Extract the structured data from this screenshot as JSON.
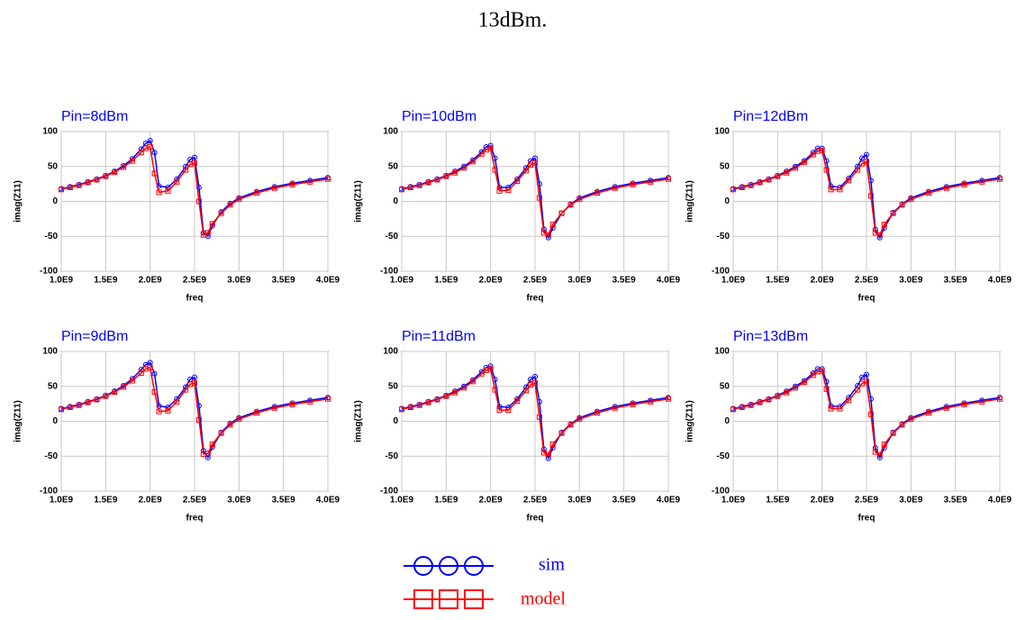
{
  "caption": "13dBm.",
  "legend": [
    "sim",
    "model"
  ],
  "chart_data": [
    {
      "type": "line",
      "title": "Pin=8dBm",
      "xlabel": "freq",
      "ylabel": "imag(Z11)",
      "x": [
        1000000000.0,
        1100000000.0,
        1200000000.0,
        1300000000.0,
        1400000000.0,
        1500000000.0,
        1600000000.0,
        1700000000.0,
        1800000000.0,
        1900000000.0,
        1950000000.0,
        2000000000.0,
        2050000000.0,
        2100000000.0,
        2200000000.0,
        2300000000.0,
        2400000000.0,
        2450000000.0,
        2500000000.0,
        2550000000.0,
        2600000000.0,
        2650000000.0,
        2700000000.0,
        2800000000.0,
        2900000000.0,
        3000000000.0,
        3200000000.0,
        3400000000.0,
        3600000000.0,
        3800000000.0,
        4000000000.0
      ],
      "series": [
        {
          "color": "#0000ff",
          "values": [
            18,
            21,
            24,
            28,
            32,
            37,
            43,
            51,
            61,
            75,
            83,
            87,
            70,
            22,
            20,
            32,
            50,
            60,
            63,
            20,
            -45,
            -50,
            -35,
            -15,
            -3,
            5,
            14,
            21,
            26,
            30,
            34
          ]
        },
        {
          "color": "#ff0000",
          "values": [
            17,
            20,
            23,
            27,
            31,
            36,
            42,
            49,
            58,
            70,
            76,
            78,
            40,
            13,
            15,
            28,
            45,
            53,
            55,
            0,
            -48,
            -45,
            -32,
            -17,
            -5,
            3,
            12,
            19,
            24,
            28,
            32
          ]
        }
      ],
      "xlim": [
        1000000000.0,
        4000000000.0
      ],
      "ylim": [
        -100,
        100
      ],
      "xticks": [
        {
          "value": 1000000000.0,
          "label": "1.0E9"
        },
        {
          "value": 1500000000.0,
          "label": "1.5E9"
        },
        {
          "value": 2000000000.0,
          "label": "2.0E9"
        },
        {
          "value": 2500000000.0,
          "label": "2.5E9"
        },
        {
          "value": 3000000000.0,
          "label": "3.0E9"
        },
        {
          "value": 3500000000.0,
          "label": "3.5E9"
        },
        {
          "value": 4000000000.0,
          "label": "4.0E9"
        }
      ],
      "yticks": [
        -100,
        -50,
        0,
        50,
        100
      ],
      "grid": true
    },
    {
      "type": "line",
      "title": "Pin=10dBm",
      "xlabel": "freq",
      "ylabel": "imag(Z11)",
      "x": [
        1000000000.0,
        1100000000.0,
        1200000000.0,
        1300000000.0,
        1400000000.0,
        1500000000.0,
        1600000000.0,
        1700000000.0,
        1800000000.0,
        1900000000.0,
        1950000000.0,
        2000000000.0,
        2050000000.0,
        2100000000.0,
        2200000000.0,
        2300000000.0,
        2400000000.0,
        2450000000.0,
        2500000000.0,
        2550000000.0,
        2600000000.0,
        2650000000.0,
        2700000000.0,
        2800000000.0,
        2900000000.0,
        3000000000.0,
        3200000000.0,
        3400000000.0,
        3600000000.0,
        3800000000.0,
        4000000000.0
      ],
      "series": [
        {
          "color": "#0000ff",
          "values": [
            18,
            21,
            24,
            28,
            32,
            37,
            43,
            50,
            59,
            71,
            78,
            80,
            62,
            20,
            20,
            32,
            48,
            58,
            62,
            25,
            -40,
            -52,
            -38,
            -17,
            -4,
            5,
            14,
            21,
            26,
            30,
            34
          ]
        },
        {
          "color": "#ff0000",
          "values": [
            17,
            20,
            23,
            27,
            31,
            36,
            41,
            48,
            57,
            68,
            74,
            76,
            45,
            15,
            16,
            29,
            44,
            52,
            55,
            5,
            -45,
            -48,
            -33,
            -17,
            -5,
            3,
            12,
            19,
            24,
            28,
            32
          ]
        }
      ],
      "xlim": [
        1000000000.0,
        4000000000.0
      ],
      "ylim": [
        -100,
        100
      ],
      "xticks": [
        {
          "value": 1000000000.0,
          "label": "1.0E9"
        },
        {
          "value": 1500000000.0,
          "label": "1.5E9"
        },
        {
          "value": 2000000000.0,
          "label": "2.0E9"
        },
        {
          "value": 2500000000.0,
          "label": "2.5E9"
        },
        {
          "value": 3000000000.0,
          "label": "3.0E9"
        },
        {
          "value": 3500000000.0,
          "label": "3.5E9"
        },
        {
          "value": 4000000000.0,
          "label": "4.0E9"
        }
      ],
      "yticks": [
        -100,
        -50,
        0,
        50,
        100
      ],
      "grid": true
    },
    {
      "type": "line",
      "title": "Pin=12dBm",
      "xlabel": "freq",
      "ylabel": "imag(Z11)",
      "x": [
        1000000000.0,
        1100000000.0,
        1200000000.0,
        1300000000.0,
        1400000000.0,
        1500000000.0,
        1600000000.0,
        1700000000.0,
        1800000000.0,
        1900000000.0,
        1950000000.0,
        2000000000.0,
        2050000000.0,
        2100000000.0,
        2200000000.0,
        2300000000.0,
        2400000000.0,
        2450000000.0,
        2500000000.0,
        2550000000.0,
        2600000000.0,
        2650000000.0,
        2700000000.0,
        2800000000.0,
        2900000000.0,
        3000000000.0,
        3200000000.0,
        3400000000.0,
        3600000000.0,
        3800000000.0,
        4000000000.0
      ],
      "series": [
        {
          "color": "#0000ff",
          "values": [
            18,
            21,
            24,
            28,
            32,
            37,
            43,
            50,
            58,
            70,
            76,
            76,
            58,
            22,
            20,
            33,
            50,
            62,
            67,
            30,
            -40,
            -52,
            -38,
            -16,
            -4,
            5,
            14,
            21,
            26,
            30,
            34
          ]
        },
        {
          "color": "#ff0000",
          "values": [
            17,
            20,
            23,
            27,
            31,
            36,
            41,
            48,
            56,
            67,
            72,
            73,
            45,
            17,
            17,
            30,
            45,
            54,
            57,
            8,
            -45,
            -48,
            -33,
            -17,
            -5,
            3,
            12,
            19,
            24,
            28,
            32
          ]
        }
      ],
      "xlim": [
        1000000000.0,
        4000000000.0
      ],
      "ylim": [
        -100,
        100
      ],
      "xticks": [
        {
          "value": 1000000000.0,
          "label": "1.0E9"
        },
        {
          "value": 1500000000.0,
          "label": "1.5E9"
        },
        {
          "value": 2000000000.0,
          "label": "2.0E9"
        },
        {
          "value": 2500000000.0,
          "label": "2.5E9"
        },
        {
          "value": 3000000000.0,
          "label": "3.0E9"
        },
        {
          "value": 3500000000.0,
          "label": "3.5E9"
        },
        {
          "value": 4000000000.0,
          "label": "4.0E9"
        }
      ],
      "yticks": [
        -100,
        -50,
        0,
        50,
        100
      ],
      "grid": true
    },
    {
      "type": "line",
      "title": "Pin=9dBm",
      "xlabel": "freq",
      "ylabel": "imag(Z11)",
      "x": [
        1000000000.0,
        1100000000.0,
        1200000000.0,
        1300000000.0,
        1400000000.0,
        1500000000.0,
        1600000000.0,
        1700000000.0,
        1800000000.0,
        1900000000.0,
        1950000000.0,
        2000000000.0,
        2050000000.0,
        2100000000.0,
        2200000000.0,
        2300000000.0,
        2400000000.0,
        2450000000.0,
        2500000000.0,
        2550000000.0,
        2600000000.0,
        2650000000.0,
        2700000000.0,
        2800000000.0,
        2900000000.0,
        3000000000.0,
        3200000000.0,
        3400000000.0,
        3600000000.0,
        3800000000.0,
        4000000000.0
      ],
      "series": [
        {
          "color": "#0000ff",
          "values": [
            18,
            21,
            24,
            28,
            32,
            37,
            43,
            51,
            61,
            74,
            81,
            84,
            68,
            22,
            20,
            32,
            49,
            60,
            63,
            22,
            -42,
            -52,
            -37,
            -16,
            -3,
            5,
            14,
            21,
            26,
            30,
            34
          ]
        },
        {
          "color": "#ff0000",
          "values": [
            17,
            20,
            23,
            27,
            31,
            36,
            42,
            49,
            58,
            69,
            75,
            77,
            42,
            14,
            15,
            28,
            45,
            53,
            55,
            2,
            -47,
            -46,
            -33,
            -17,
            -5,
            3,
            12,
            19,
            24,
            28,
            32
          ]
        }
      ],
      "xlim": [
        1000000000.0,
        4000000000.0
      ],
      "ylim": [
        -100,
        100
      ],
      "xticks": [
        {
          "value": 1000000000.0,
          "label": "1.0E9"
        },
        {
          "value": 1500000000.0,
          "label": "1.5E9"
        },
        {
          "value": 2000000000.0,
          "label": "2.0E9"
        },
        {
          "value": 2500000000.0,
          "label": "2.5E9"
        },
        {
          "value": 3000000000.0,
          "label": "3.0E9"
        },
        {
          "value": 3500000000.0,
          "label": "3.5E9"
        },
        {
          "value": 4000000000.0,
          "label": "4.0E9"
        }
      ],
      "yticks": [
        -100,
        -50,
        0,
        50,
        100
      ],
      "grid": true
    },
    {
      "type": "line",
      "title": "Pin=11dBm",
      "xlabel": "freq",
      "ylabel": "imag(Z11)",
      "x": [
        1000000000.0,
        1100000000.0,
        1200000000.0,
        1300000000.0,
        1400000000.0,
        1500000000.0,
        1600000000.0,
        1700000000.0,
        1800000000.0,
        1900000000.0,
        1950000000.0,
        2000000000.0,
        2050000000.0,
        2100000000.0,
        2200000000.0,
        2300000000.0,
        2400000000.0,
        2450000000.0,
        2500000000.0,
        2550000000.0,
        2600000000.0,
        2650000000.0,
        2700000000.0,
        2800000000.0,
        2900000000.0,
        3000000000.0,
        3200000000.0,
        3400000000.0,
        3600000000.0,
        3800000000.0,
        4000000000.0
      ],
      "series": [
        {
          "color": "#0000ff",
          "values": [
            18,
            21,
            24,
            28,
            32,
            37,
            43,
            50,
            59,
            71,
            77,
            79,
            60,
            21,
            20,
            32,
            49,
            60,
            64,
            28,
            -40,
            -53,
            -38,
            -16,
            -4,
            5,
            14,
            21,
            26,
            30,
            34
          ]
        },
        {
          "color": "#ff0000",
          "values": [
            17,
            20,
            23,
            27,
            31,
            36,
            41,
            48,
            57,
            68,
            73,
            75,
            45,
            16,
            16,
            29,
            44,
            52,
            55,
            6,
            -45,
            -48,
            -33,
            -17,
            -5,
            3,
            12,
            19,
            24,
            28,
            32
          ]
        }
      ],
      "xlim": [
        1000000000.0,
        4000000000.0
      ],
      "ylim": [
        -100,
        100
      ],
      "xticks": [
        {
          "value": 1000000000.0,
          "label": "1.0E9"
        },
        {
          "value": 1500000000.0,
          "label": "1.5E9"
        },
        {
          "value": 2000000000.0,
          "label": "2.0E9"
        },
        {
          "value": 2500000000.0,
          "label": "2.5E9"
        },
        {
          "value": 3000000000.0,
          "label": "3.0E9"
        },
        {
          "value": 3500000000.0,
          "label": "3.5E9"
        },
        {
          "value": 4000000000.0,
          "label": "4.0E9"
        }
      ],
      "yticks": [
        -100,
        -50,
        0,
        50,
        100
      ],
      "grid": true
    },
    {
      "type": "line",
      "title": "Pin=13dBm",
      "xlabel": "freq",
      "ylabel": "imag(Z11)",
      "x": [
        1000000000.0,
        1100000000.0,
        1200000000.0,
        1300000000.0,
        1400000000.0,
        1500000000.0,
        1600000000.0,
        1700000000.0,
        1800000000.0,
        1900000000.0,
        1950000000.0,
        2000000000.0,
        2050000000.0,
        2100000000.0,
        2200000000.0,
        2300000000.0,
        2400000000.0,
        2450000000.0,
        2500000000.0,
        2550000000.0,
        2600000000.0,
        2650000000.0,
        2700000000.0,
        2800000000.0,
        2900000000.0,
        3000000000.0,
        3200000000.0,
        3400000000.0,
        3600000000.0,
        3800000000.0,
        4000000000.0
      ],
      "series": [
        {
          "color": "#0000ff",
          "values": [
            18,
            21,
            24,
            28,
            32,
            37,
            43,
            50,
            58,
            69,
            75,
            75,
            57,
            22,
            21,
            34,
            51,
            63,
            67,
            32,
            -38,
            -52,
            -38,
            -16,
            -4,
            5,
            14,
            21,
            26,
            30,
            34
          ]
        },
        {
          "color": "#ff0000",
          "values": [
            17,
            20,
            23,
            27,
            31,
            36,
            41,
            48,
            56,
            66,
            71,
            72,
            46,
            18,
            18,
            30,
            45,
            54,
            57,
            10,
            -44,
            -48,
            -33,
            -17,
            -5,
            3,
            12,
            19,
            24,
            28,
            32
          ]
        }
      ],
      "xlim": [
        1000000000.0,
        4000000000.0
      ],
      "ylim": [
        -100,
        100
      ],
      "xticks": [
        {
          "value": 1000000000.0,
          "label": "1.0E9"
        },
        {
          "value": 1500000000.0,
          "label": "1.5E9"
        },
        {
          "value": 2000000000.0,
          "label": "2.0E9"
        },
        {
          "value": 2500000000.0,
          "label": "2.5E9"
        },
        {
          "value": 3000000000.0,
          "label": "3.0E9"
        },
        {
          "value": 3500000000.0,
          "label": "3.5E9"
        },
        {
          "value": 4000000000.0,
          "label": "4.0E9"
        }
      ],
      "yticks": [
        -100,
        -50,
        0,
        50,
        100
      ],
      "grid": true
    }
  ]
}
